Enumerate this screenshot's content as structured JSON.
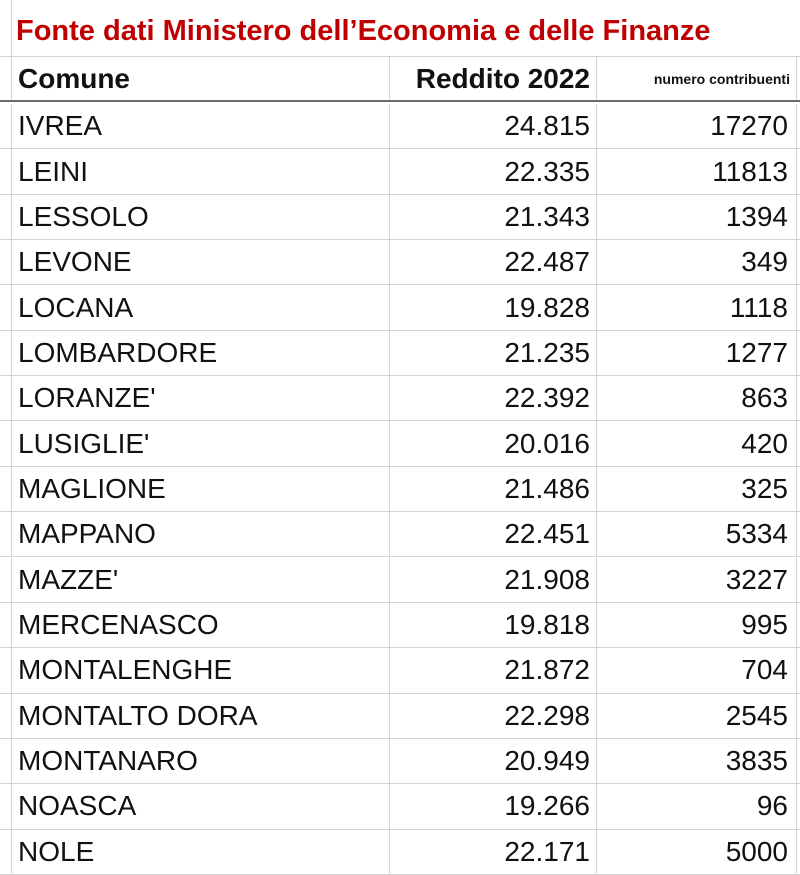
{
  "title": "Fonte dati Ministero dell’Economia e delle Finanze",
  "columns": {
    "comune": "Comune",
    "reddito": "Reddito 2022",
    "contribuenti": "numero contribuenti"
  },
  "rows": [
    {
      "comune": "IVREA",
      "reddito": "24.815",
      "contribuenti": "17270"
    },
    {
      "comune": "LEINI",
      "reddito": "22.335",
      "contribuenti": "11813"
    },
    {
      "comune": "LESSOLO",
      "reddito": "21.343",
      "contribuenti": "1394"
    },
    {
      "comune": "LEVONE",
      "reddito": "22.487",
      "contribuenti": "349"
    },
    {
      "comune": "LOCANA",
      "reddito": "19.828",
      "contribuenti": "1118"
    },
    {
      "comune": "LOMBARDORE",
      "reddito": "21.235",
      "contribuenti": "1277"
    },
    {
      "comune": "LORANZE'",
      "reddito": "22.392",
      "contribuenti": "863"
    },
    {
      "comune": "LUSIGLIE'",
      "reddito": "20.016",
      "contribuenti": "420"
    },
    {
      "comune": "MAGLIONE",
      "reddito": "21.486",
      "contribuenti": "325"
    },
    {
      "comune": "MAPPANO",
      "reddito": "22.451",
      "contribuenti": "5334"
    },
    {
      "comune": "MAZZE'",
      "reddito": "21.908",
      "contribuenti": "3227"
    },
    {
      "comune": "MERCENASCO",
      "reddito": "19.818",
      "contribuenti": "995"
    },
    {
      "comune": "MONTALENGHE",
      "reddito": "21.872",
      "contribuenti": "704"
    },
    {
      "comune": "MONTALTO DORA",
      "reddito": "22.298",
      "contribuenti": "2545"
    },
    {
      "comune": "MONTANARO",
      "reddito": "20.949",
      "contribuenti": "3835"
    },
    {
      "comune": "NOASCA",
      "reddito": "19.266",
      "contribuenti": "96"
    },
    {
      "comune": "NOLE",
      "reddito": "22.171",
      "contribuenti": "5000"
    }
  ],
  "colors": {
    "title": "#c00000",
    "grid": "#d4d4d4",
    "text": "#111111"
  }
}
